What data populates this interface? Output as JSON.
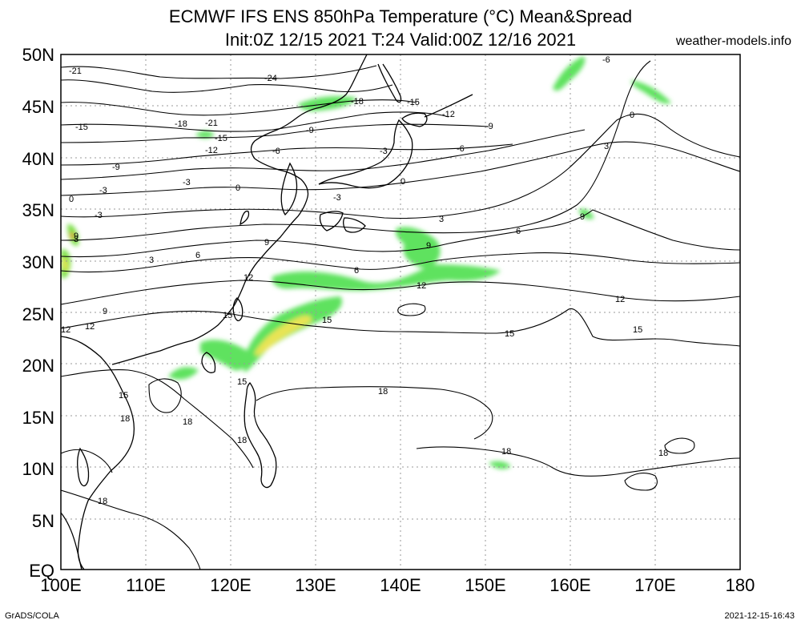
{
  "header": {
    "title_line1": "ECMWF IFS ENS 850hPa Temperature (°C) Mean&Spread",
    "title_line2": "Init:0Z 12/15 2021  T:24 Valid:00Z 12/16 2021",
    "site": "weather-models.info"
  },
  "axes": {
    "lat_labels": [
      "50N",
      "45N",
      "40N",
      "35N",
      "30N",
      "25N",
      "20N",
      "15N",
      "10N",
      "5N",
      "EQ"
    ],
    "lon_labels": [
      "100E",
      "110E",
      "120E",
      "130E",
      "140E",
      "150E",
      "160E",
      "170E",
      "180"
    ]
  },
  "contour_labels": [
    "-24",
    "-21",
    "-21",
    "-18",
    "-18",
    "-15",
    "-15",
    "-15",
    "-12",
    "-12",
    "-9",
    "-9",
    "-9",
    "-6",
    "-6",
    "-6",
    "-3",
    "-3",
    "-3",
    "-3",
    "-3",
    "0",
    "0",
    "0",
    "0",
    "3",
    "3",
    "3",
    "3",
    "6",
    "6",
    "6",
    "9",
    "9",
    "9",
    "9",
    "9",
    "12",
    "12",
    "12",
    "12",
    "12",
    "15",
    "15",
    "15",
    "15",
    "15",
    "15",
    "18",
    "18",
    "18",
    "18",
    "18",
    "18",
    "18"
  ],
  "footer": {
    "left": "GrADS/COLA",
    "right": "2021-12-15-16:43"
  },
  "colors": {
    "spread_low": "#5fe25f",
    "spread_mid": "#7de04a",
    "spread_high": "#e8e455",
    "spread_max": "#f08030",
    "contour": "#000000",
    "grid": "#9a9a9a"
  }
}
